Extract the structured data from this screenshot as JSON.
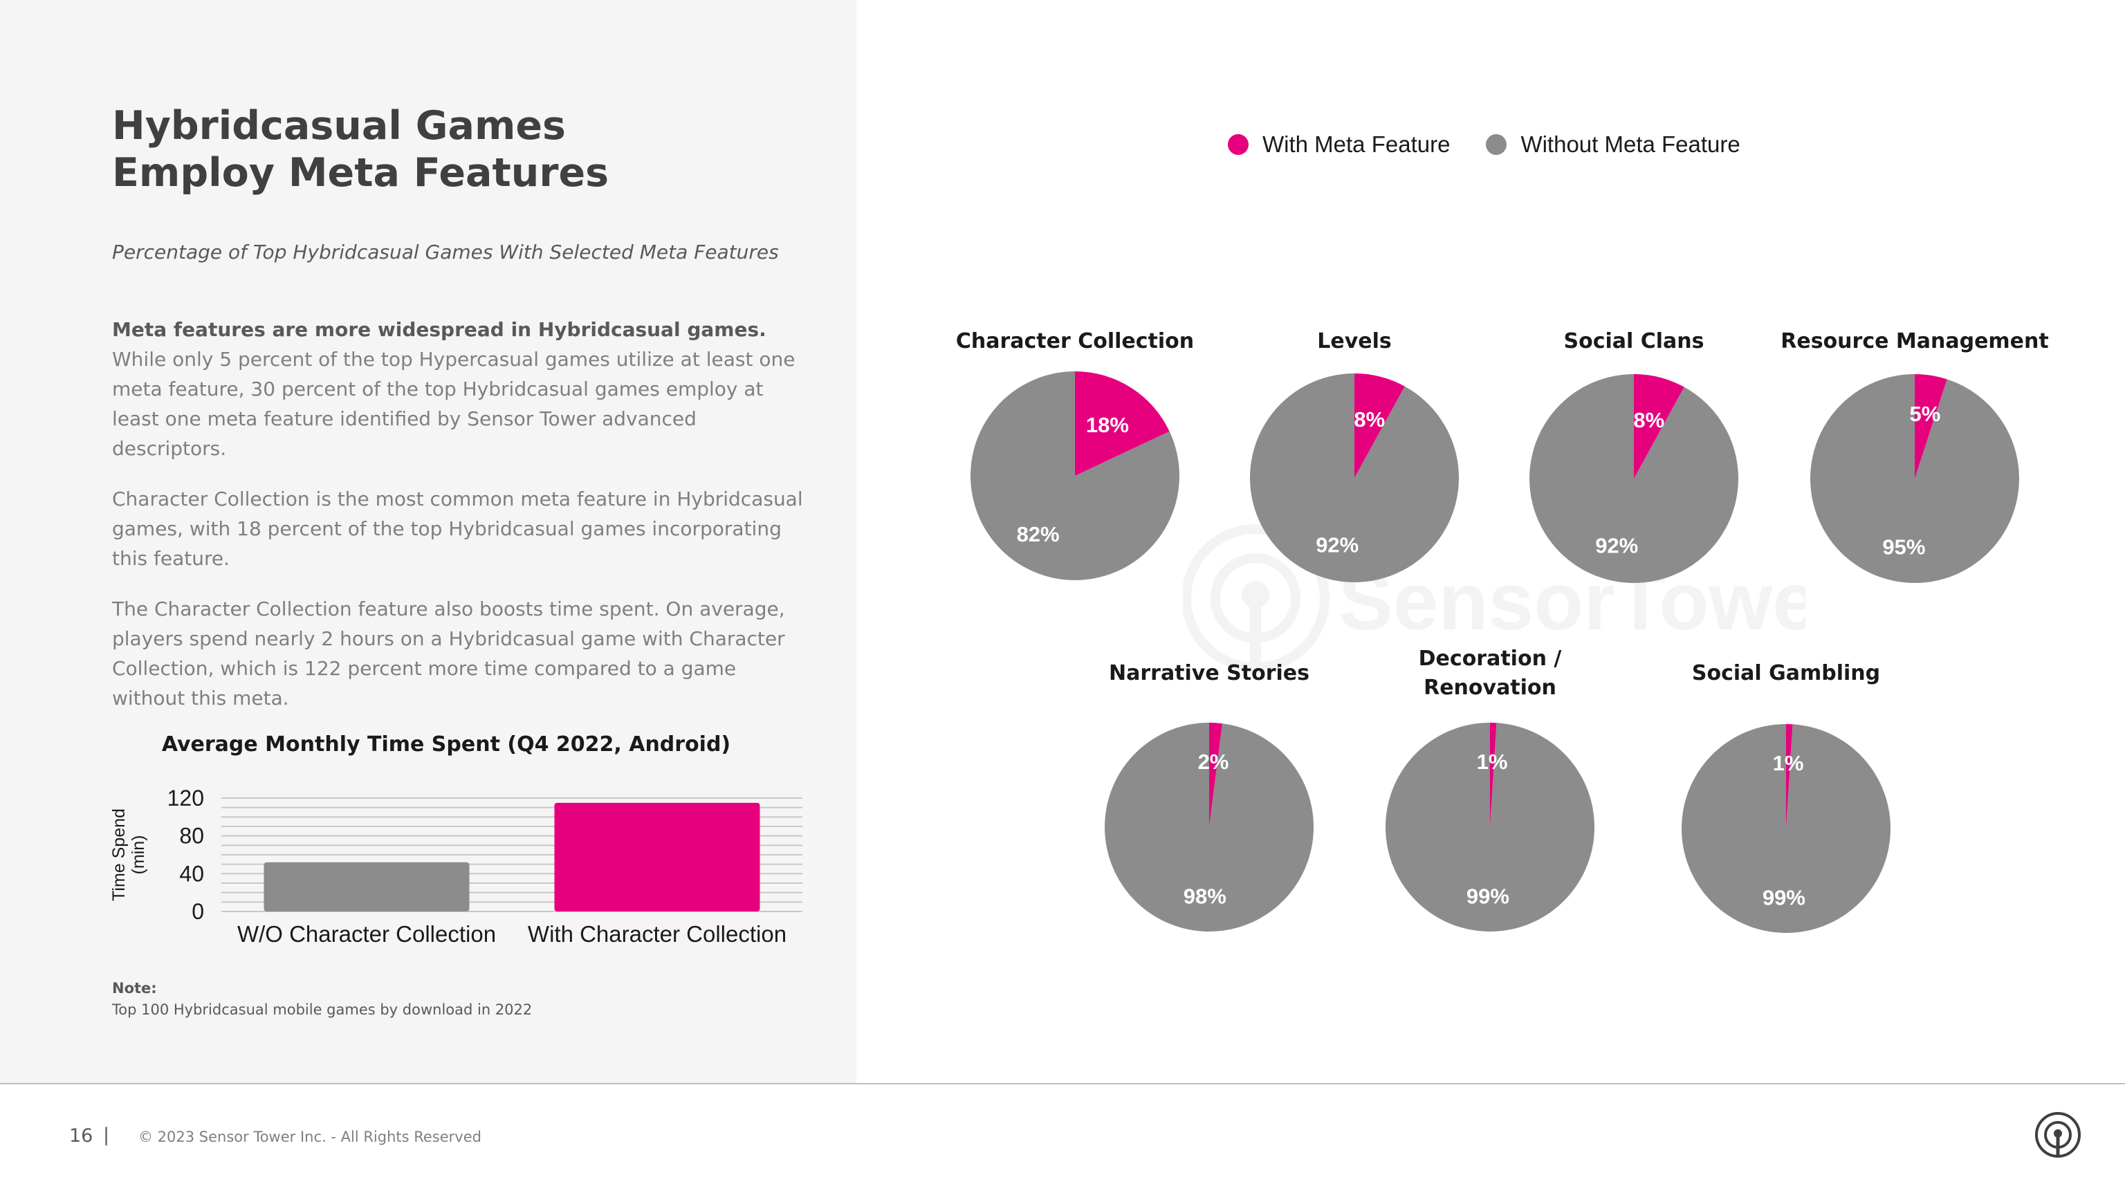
{
  "title": {
    "line1": "Hybridcasual Games",
    "line2": "Employ Meta Features"
  },
  "subtitle": "Percentage of Top Hybridcasual Games With Selected Meta Features",
  "body": {
    "lead": "Meta features are more widespread in Hybridcasual games.",
    "p1": "While only 5 percent of the top Hypercasual games utilize at least one meta feature, 30 percent of the top Hybridcasual games employ at least one meta feature identified by Sensor Tower advanced descriptors.",
    "p2": "Character Collection is the most common meta feature in Hybridcasual games, with 18 percent of the top Hybridcasual games incorporating this feature.",
    "p3": "The Character Collection feature also boosts time spent. On average, players spend nearly 2 hours on a Hybridcasual game with Character Collection, which is 122 percent more time compared to a game without this meta."
  },
  "note": {
    "label": "Note:",
    "text": "Top 100 Hybridcasual mobile games by download in 2022"
  },
  "footer": {
    "page": "16",
    "separator": "|",
    "copyright": "© 2023 Sensor Tower Inc. - All Rights Reserved"
  },
  "legend": {
    "with": "With Meta Feature",
    "without": "Without Meta Feature"
  },
  "watermark": "SensorTower",
  "colors": {
    "with": "#e6007e",
    "without": "#8c8c8c",
    "panel": "#f5f5f5"
  },
  "icons": {
    "footer": "sensor-tower-logo-icon",
    "watermark": "sensor-tower-logo-icon"
  },
  "chart_data": [
    {
      "type": "bar",
      "title": "Average Monthly Time Spent (Q4 2022, Android)",
      "ylabel": "Time Spend (min)",
      "ylabel_lines": [
        "Time Spend",
        "(min)"
      ],
      "categories": [
        "W/O Character Collection",
        "With Character Collection"
      ],
      "values": [
        52,
        115
      ],
      "colors": [
        "#8c8c8c",
        "#e6007e"
      ],
      "yticks": [
        0,
        40,
        80,
        120
      ],
      "ylim": [
        0,
        120
      ],
      "grid": true
    },
    {
      "type": "pie",
      "series": [
        {
          "title": [
            "Character Collection"
          ],
          "with": 18,
          "without": 82,
          "with_label": "18%",
          "without_label": "82%"
        },
        {
          "title": [
            "Levels"
          ],
          "with": 8,
          "without": 92,
          "with_label": "8%",
          "without_label": "92%"
        },
        {
          "title": [
            "Social Clans"
          ],
          "with": 8,
          "without": 92,
          "with_label": "8%",
          "without_label": "92%"
        },
        {
          "title": [
            "Resource Management"
          ],
          "with": 5,
          "without": 95,
          "with_label": "5%",
          "without_label": "95%"
        },
        {
          "title": [
            "Narrative Stories"
          ],
          "with": 2,
          "without": 98,
          "with_label": "2%",
          "without_label": "98%"
        },
        {
          "title": [
            "Decoration /",
            "Renovation"
          ],
          "with": 1,
          "without": 99,
          "with_label": "1%",
          "without_label": "99%"
        },
        {
          "title": [
            "Social Gambling"
          ],
          "with": 1,
          "without": 99,
          "with_label": "1%",
          "without_label": "99%"
        }
      ]
    }
  ]
}
